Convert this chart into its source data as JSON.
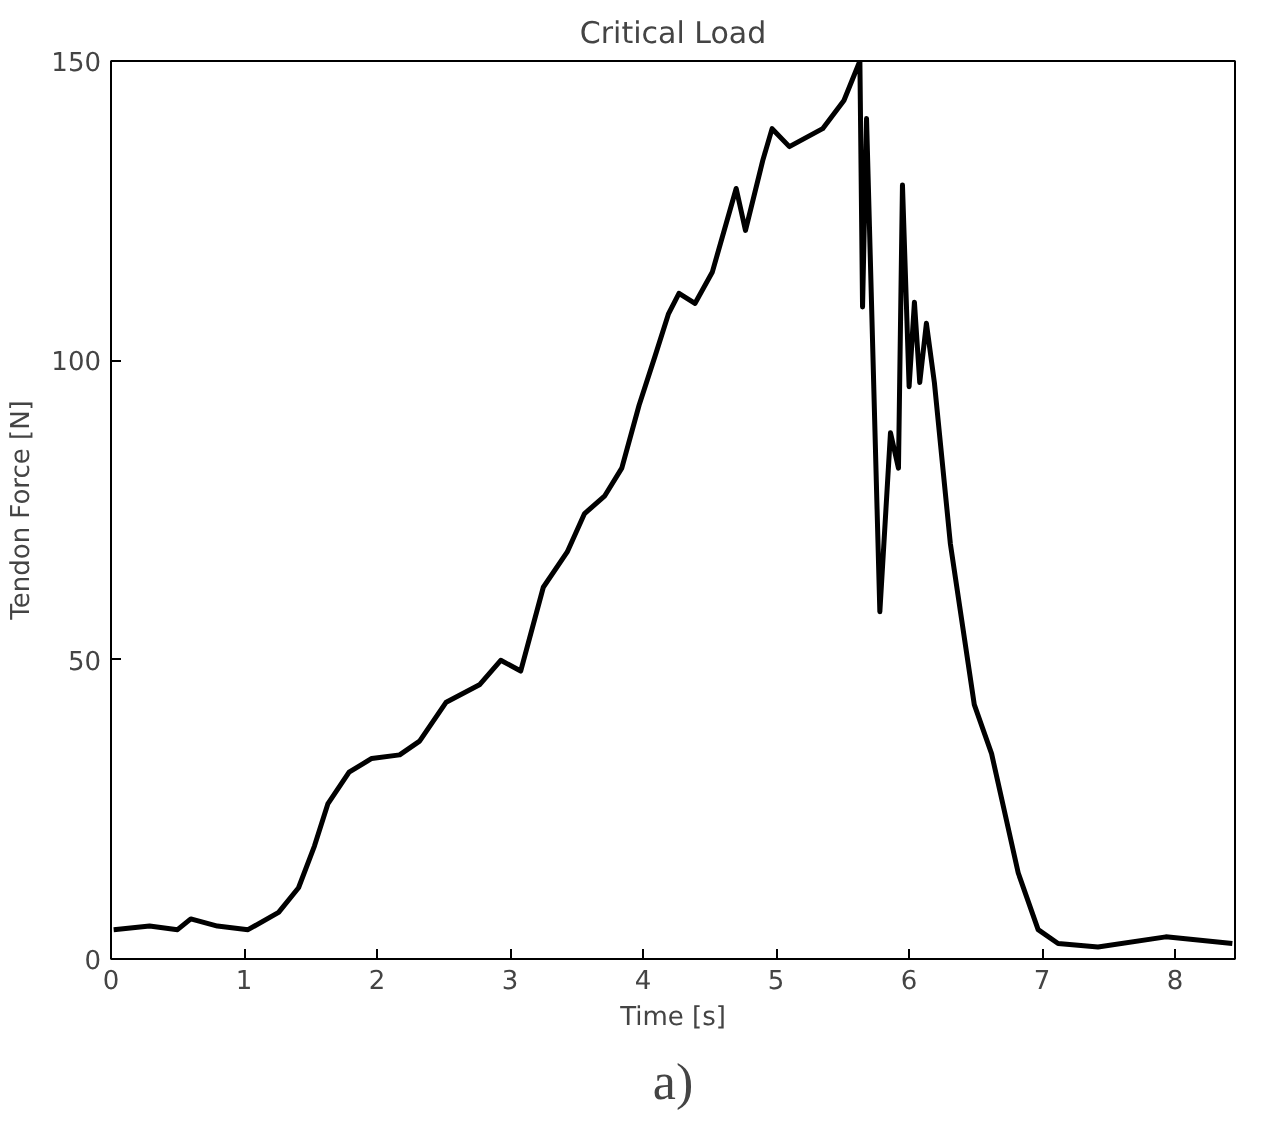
{
  "chart_data": {
    "type": "line",
    "title": "Critical Load",
    "xlabel": "Time [s]",
    "ylabel": "Tendon Force [N]",
    "annotations": [
      "a)"
    ],
    "x": [
      0.02,
      0.29,
      0.5,
      0.6,
      0.8,
      1.03,
      1.26,
      1.41,
      1.53,
      1.63,
      1.79,
      1.96,
      2.17,
      2.32,
      2.52,
      2.77,
      2.93,
      3.08,
      3.25,
      3.43,
      3.56,
      3.71,
      3.84,
      3.97,
      4.09,
      4.19,
      4.27,
      4.39,
      4.52,
      4.7,
      4.77,
      4.9,
      4.97,
      5.1,
      5.35,
      5.51,
      5.63,
      5.65,
      5.68,
      5.78,
      5.86,
      5.92,
      5.95,
      6.0,
      6.04,
      6.08,
      6.13,
      6.19,
      6.31,
      6.49,
      6.62,
      6.82,
      6.97,
      7.12,
      7.42,
      7.93,
      8.43
    ],
    "series": [
      {
        "color": "#000000",
        "values": [
          4.9,
          5.5,
          4.9,
          6.7,
          5.5,
          4.9,
          7.8,
          11.9,
          18.9,
          25.9,
          31.2,
          33.5,
          34.1,
          36.4,
          42.9,
          45.8,
          49.9,
          48.1,
          62.1,
          68,
          74.4,
          77.3,
          82,
          92.5,
          100.7,
          107.7,
          111.2,
          109.5,
          114.7,
          128.7,
          121.7,
          133.4,
          138.7,
          135.7,
          138.7,
          143.4,
          150,
          108.9,
          140.4,
          58,
          87.9,
          82,
          129.3,
          95.6,
          109.7,
          96.3,
          106.2,
          96.3,
          69.4,
          42.5,
          34.3,
          14.4,
          4.9,
          2.6,
          2,
          3.7,
          2.6
        ]
      }
    ],
    "xlim": [
      0,
      8.45
    ],
    "ylim": [
      0,
      150
    ],
    "xticks": [
      0,
      1,
      2,
      3,
      4,
      5,
      6,
      7,
      8
    ],
    "yticks": [
      0,
      50,
      100,
      150
    ],
    "line_style": "solid"
  }
}
